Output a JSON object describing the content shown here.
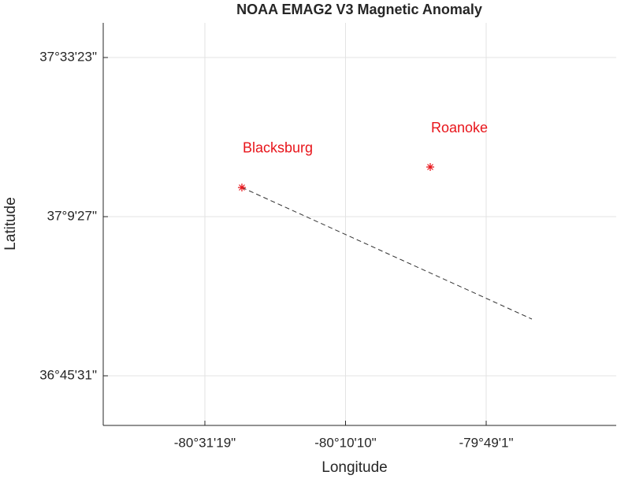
{
  "chart_data": {
    "type": "scatter",
    "title": "NOAA EMAG2 V3 Magnetic Anomaly",
    "xlabel": "Longitude",
    "ylabel": "Latitude",
    "xlim": [
      -80.7766,
      -79.4911
    ],
    "ylim": [
      36.6342,
      37.6433
    ],
    "xticks": [
      {
        "value": -80.5219,
        "label": "-80°31'19\""
      },
      {
        "value": -80.1694,
        "label": "-80°10'10\""
      },
      {
        "value": -79.8169,
        "label": "-79°49'1\""
      }
    ],
    "yticks": [
      {
        "value": 36.7586,
        "label": "36°45'31\""
      },
      {
        "value": 37.1575,
        "label": "37°9'27\""
      },
      {
        "value": 37.5564,
        "label": "37°33'23\""
      }
    ],
    "grid": true,
    "points": [
      {
        "label": "Blacksburg",
        "x": -80.4291,
        "y": 37.2306
      },
      {
        "label": "Roanoke",
        "x": -79.9571,
        "y": 37.2819
      }
    ],
    "marker_color": "#e8141a",
    "track": {
      "x": [
        -80.4291,
        -79.7024
      ],
      "y": [
        37.2306,
        36.9008
      ],
      "color": "#333333"
    }
  }
}
